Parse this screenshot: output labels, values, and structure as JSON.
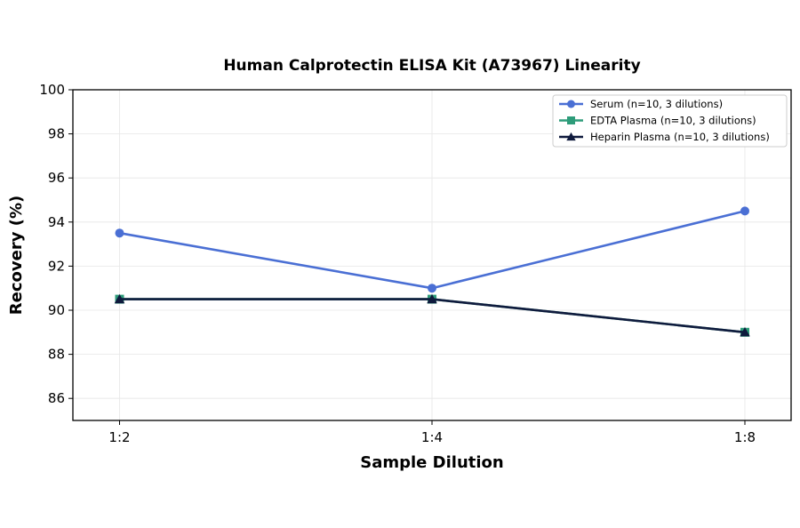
{
  "chart_data": {
    "type": "line",
    "title": "Human Calprotectin ELISA Kit (A73967) Linearity",
    "xlabel": "Sample Dilution",
    "ylabel": "Recovery (%)",
    "categories": [
      "1:2",
      "1:4",
      "1:8"
    ],
    "ylim": [
      85,
      100
    ],
    "yticks": [
      86,
      88,
      90,
      92,
      94,
      96,
      98,
      100
    ],
    "grid": true,
    "legend_position": "top-right",
    "series": [
      {
        "name": "Serum (n=10, 3 dilutions)",
        "values": [
          93.5,
          91.0,
          94.5
        ],
        "color": "#4a6fd4",
        "marker": "circle"
      },
      {
        "name": "EDTA Plasma (n=10, 3 dilutions)",
        "values": [
          90.5,
          90.5,
          89.0
        ],
        "color": "#2e9c7a",
        "marker": "square"
      },
      {
        "name": "Heparin Plasma (n=10, 3 dilutions)",
        "values": [
          90.5,
          90.5,
          89.0
        ],
        "color": "#0f1a3d",
        "marker": "triangle"
      }
    ]
  }
}
